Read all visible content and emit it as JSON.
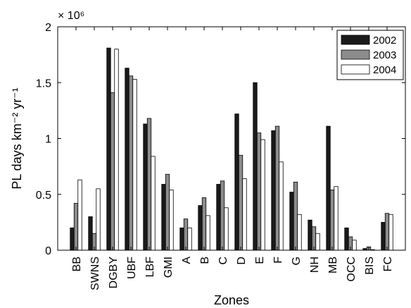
{
  "chart_data": {
    "type": "bar",
    "title": "",
    "xlabel": "Zones",
    "ylabel": "PL days km⁻² yr⁻¹",
    "exponent_label": "× 10⁶",
    "y_scale": 1000000,
    "ylim": [
      0,
      2
    ],
    "yticks": [
      "0",
      "0.5",
      "1",
      "1.5",
      "2"
    ],
    "yticks_values": [
      0,
      0.5,
      1,
      1.5,
      2
    ],
    "grid": false,
    "legend_position": "top-right",
    "categories": [
      "BB",
      "SWNS",
      "DGBY",
      "UBF",
      "LBF",
      "GMI",
      "A",
      "B",
      "C",
      "D",
      "E",
      "F",
      "G",
      "NH",
      "MB",
      "OCC",
      "BIS",
      "FC"
    ],
    "series": [
      {
        "name": "2002",
        "color": "#1a1a1a",
        "values": [
          0.2,
          0.3,
          1.81,
          1.63,
          1.13,
          0.59,
          0.2,
          0.4,
          0.59,
          1.22,
          1.5,
          1.07,
          0.52,
          0.27,
          1.11,
          0.2,
          0.015,
          0.25
        ]
      },
      {
        "name": "2003",
        "color": "#8c8c8c",
        "values": [
          0.42,
          0.15,
          1.41,
          1.56,
          1.18,
          0.68,
          0.28,
          0.47,
          0.62,
          0.85,
          1.05,
          1.11,
          0.61,
          0.21,
          0.54,
          0.12,
          0.03,
          0.33
        ]
      },
      {
        "name": "2004",
        "color": "#ffffff",
        "values": [
          0.63,
          0.55,
          1.8,
          1.53,
          0.84,
          0.54,
          0.2,
          0.31,
          0.38,
          0.64,
          0.99,
          0.79,
          0.32,
          0.15,
          0.57,
          0.09,
          0.005,
          0.32
        ]
      }
    ]
  }
}
